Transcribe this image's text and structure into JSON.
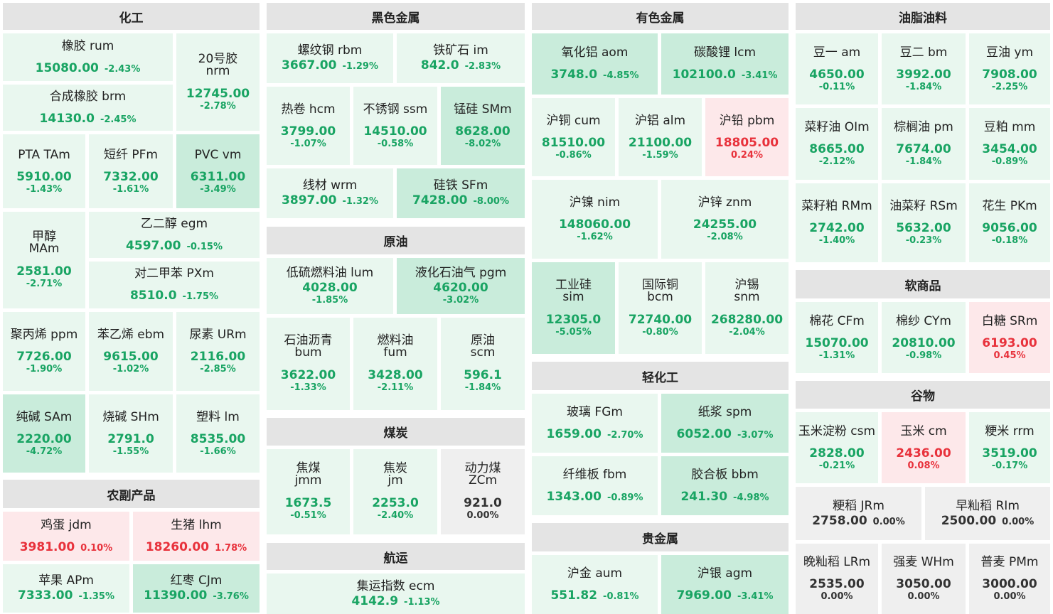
{
  "sections": {
    "chemical": "化工",
    "ferrous": "黑色金属",
    "nonferrous": "有色金属",
    "oils": "油脂油料",
    "crude": "原油",
    "coal": "煤炭",
    "shipping": "航运",
    "agri": "农副产品",
    "light": "轻化工",
    "precious": "贵金属",
    "soft": "软商品",
    "grain": "谷物"
  },
  "colors": {
    "down_text": "#19a463",
    "up_text": "#e8323c",
    "flat_text": "#333333",
    "down_light_bg": "#e9f7ef",
    "down_strong_bg": "#c9ecdb",
    "up_bg": "#fde8ea",
    "flat_bg": "#efefef",
    "header_bg": "#e4e4e4"
  },
  "tiles": {
    "rum": {
      "name": "橡胶  rum",
      "price": "15080.00",
      "pct": "-2.43%"
    },
    "nrm": {
      "name": "20号胶",
      "code": "nrm",
      "price": "12745.00",
      "pct": "-2.78%"
    },
    "brm": {
      "name": "合成橡胶  brm",
      "price": "14130.0",
      "pct": "-2.45%"
    },
    "tam": {
      "name": "PTA  TAm",
      "price": "5910.00",
      "pct": "-1.43%"
    },
    "pfm": {
      "name": "短纤  PFm",
      "price": "7332.00",
      "pct": "-1.61%"
    },
    "vm": {
      "name": "PVC  vm",
      "price": "6311.00",
      "pct": "-3.49%"
    },
    "mam": {
      "name": "甲醇",
      "code": "MAm",
      "price": "2581.00",
      "pct": "-2.71%"
    },
    "egm": {
      "name": "乙二醇  egm",
      "price": "4597.00",
      "pct": "-0.15%"
    },
    "pxm": {
      "name": "对二甲苯  PXm",
      "price": "8510.0",
      "pct": "-1.75%"
    },
    "ppm": {
      "name": "聚丙烯  ppm",
      "price": "7726.00",
      "pct": "-1.90%"
    },
    "ebm": {
      "name": "苯乙烯  ebm",
      "price": "9615.00",
      "pct": "-1.02%"
    },
    "urm": {
      "name": "尿素  URm",
      "price": "2116.00",
      "pct": "-2.85%"
    },
    "sam": {
      "name": "纯碱  SAm",
      "price": "2220.00",
      "pct": "-4.72%"
    },
    "shm": {
      "name": "烧碱  SHm",
      "price": "2791.0",
      "pct": "-1.55%"
    },
    "lm": {
      "name": "塑料  lm",
      "price": "8535.00",
      "pct": "-1.66%"
    },
    "jdm": {
      "name": "鸡蛋  jdm",
      "price": "3981.00",
      "pct": "0.10%"
    },
    "lhm": {
      "name": "生猪  lhm",
      "price": "18260.00",
      "pct": "1.78%"
    },
    "apm": {
      "name": "苹果  APm",
      "price": "7333.00",
      "pct": "-1.35%"
    },
    "cjm": {
      "name": "红枣  CJm",
      "price": "11390.00",
      "pct": "-3.76%"
    },
    "rbm": {
      "name": "螺纹钢  rbm",
      "price": "3667.00",
      "pct": "-1.29%"
    },
    "im": {
      "name": "铁矿石  im",
      "price": "842.0",
      "pct": "-2.83%"
    },
    "hcm": {
      "name": "热卷  hcm",
      "price": "3799.00",
      "pct": "-1.07%"
    },
    "ssm": {
      "name": "不锈钢  ssm",
      "price": "14510.00",
      "pct": "-0.58%"
    },
    "smm": {
      "name": "锰硅  SMm",
      "price": "8628.00",
      "pct": "-8.02%"
    },
    "wrm": {
      "name": "线材  wrm",
      "price": "3897.00",
      "pct": "-1.32%"
    },
    "sfm": {
      "name": "硅铁  SFm",
      "price": "7428.00",
      "pct": "-8.00%"
    },
    "lum": {
      "name": "低硫燃料油  lum",
      "price": "4028.00",
      "pct": "-1.85%"
    },
    "pgm": {
      "name": "液化石油气  pgm",
      "price": "4620.00",
      "pct": "-3.02%"
    },
    "bum": {
      "name": "石油沥青",
      "code": "bum",
      "price": "3622.00",
      "pct": "-1.33%"
    },
    "fum": {
      "name": "燃料油",
      "code": "fum",
      "price": "3428.00",
      "pct": "-2.11%"
    },
    "scm": {
      "name": "原油",
      "code": "scm",
      "price": "596.1",
      "pct": "-1.84%"
    },
    "jmm": {
      "name": "焦煤",
      "code": "jmm",
      "price": "1673.5",
      "pct": "-0.51%"
    },
    "jm": {
      "name": "焦炭",
      "code": "jm",
      "price": "2253.0",
      "pct": "-2.40%"
    },
    "zcm": {
      "name": "动力煤",
      "code": "ZCm",
      "price": "921.0",
      "pct": "0.00%"
    },
    "ecm": {
      "name": "集运指数  ecm",
      "price": "4142.9",
      "pct": "-1.13%"
    },
    "aom": {
      "name": "氧化铝  aom",
      "price": "3748.0",
      "pct": "-4.85%"
    },
    "lcm": {
      "name": "碳酸锂  lcm",
      "price": "102100.0",
      "pct": "-3.41%"
    },
    "cum": {
      "name": "沪铜  cum",
      "price": "81510.00",
      "pct": "-0.86%"
    },
    "alm": {
      "name": "沪铝  alm",
      "price": "21100.00",
      "pct": "-1.59%"
    },
    "pbm": {
      "name": "沪铅  pbm",
      "price": "18805.00",
      "pct": "0.24%"
    },
    "nim": {
      "name": "沪镍  nim",
      "price": "148060.00",
      "pct": "-1.62%"
    },
    "znm": {
      "name": "沪锌  znm",
      "price": "24255.00",
      "pct": "-2.08%"
    },
    "sim": {
      "name": "工业硅",
      "code": "sim",
      "price": "12305.0",
      "pct": "-5.05%"
    },
    "bcm": {
      "name": "国际铜",
      "code": "bcm",
      "price": "72740.00",
      "pct": "-0.80%"
    },
    "snm": {
      "name": "沪锡",
      "code": "snm",
      "price": "268280.00",
      "pct": "-2.04%"
    },
    "fgm": {
      "name": "玻璃  FGm",
      "price": "1659.00",
      "pct": "-2.70%"
    },
    "spm": {
      "name": "纸浆  spm",
      "price": "6052.00",
      "pct": "-3.07%"
    },
    "fbm": {
      "name": "纤维板  fbm",
      "price": "1343.00",
      "pct": "-0.89%"
    },
    "bbm": {
      "name": "胶合板  bbm",
      "price": "241.30",
      "pct": "-4.98%"
    },
    "aum": {
      "name": "沪金  aum",
      "price": "551.82",
      "pct": "-0.81%"
    },
    "agm": {
      "name": "沪银  agm",
      "price": "7969.00",
      "pct": "-3.41%"
    },
    "am": {
      "name": "豆一  am",
      "price": "4650.00",
      "pct": "-0.11%"
    },
    "bm": {
      "name": "豆二  bm",
      "price": "3992.00",
      "pct": "-1.84%"
    },
    "ym": {
      "name": "豆油  ym",
      "price": "7908.00",
      "pct": "-2.25%"
    },
    "olm": {
      "name": "菜籽油  OIm",
      "price": "8665.00",
      "pct": "-2.12%"
    },
    "pm": {
      "name": "棕榈油  pm",
      "price": "7674.00",
      "pct": "-1.84%"
    },
    "mm": {
      "name": "豆粕  mm",
      "price": "3454.00",
      "pct": "-0.89%"
    },
    "rmm": {
      "name": "菜籽粕  RMm",
      "price": "2742.00",
      "pct": "-1.40%"
    },
    "rsm": {
      "name": "油菜籽  RSm",
      "price": "5632.00",
      "pct": "-0.23%"
    },
    "pkm": {
      "name": "花生  PKm",
      "price": "9056.00",
      "pct": "-0.18%"
    },
    "cfm": {
      "name": "棉花  CFm",
      "price": "15070.00",
      "pct": "-1.31%"
    },
    "cym": {
      "name": "棉纱  CYm",
      "price": "20810.00",
      "pct": "-0.98%"
    },
    "srm": {
      "name": "白糖  SRm",
      "price": "6193.00",
      "pct": "0.45%"
    },
    "csm": {
      "name": "玉米淀粉  csm",
      "price": "2828.00",
      "pct": "-0.21%"
    },
    "cm": {
      "name": "玉米  cm",
      "price": "2436.00",
      "pct": "0.08%"
    },
    "rrm": {
      "name": "粳米  rrm",
      "price": "3519.00",
      "pct": "-0.17%"
    },
    "jrm": {
      "name": "粳稻  JRm",
      "price": "2758.00",
      "pct": "0.00%"
    },
    "rim": {
      "name": "早籼稻  RIm",
      "price": "2500.00",
      "pct": "0.00%"
    },
    "lrm": {
      "name": "晚籼稻  LRm",
      "price": "2535.00",
      "pct": "0.00%"
    },
    "whm": {
      "name": "强麦  WHm",
      "price": "3050.00",
      "pct": "0.00%"
    },
    "pmm": {
      "name": "普麦  PMm",
      "price": "3000.00",
      "pct": "0.00%"
    }
  }
}
